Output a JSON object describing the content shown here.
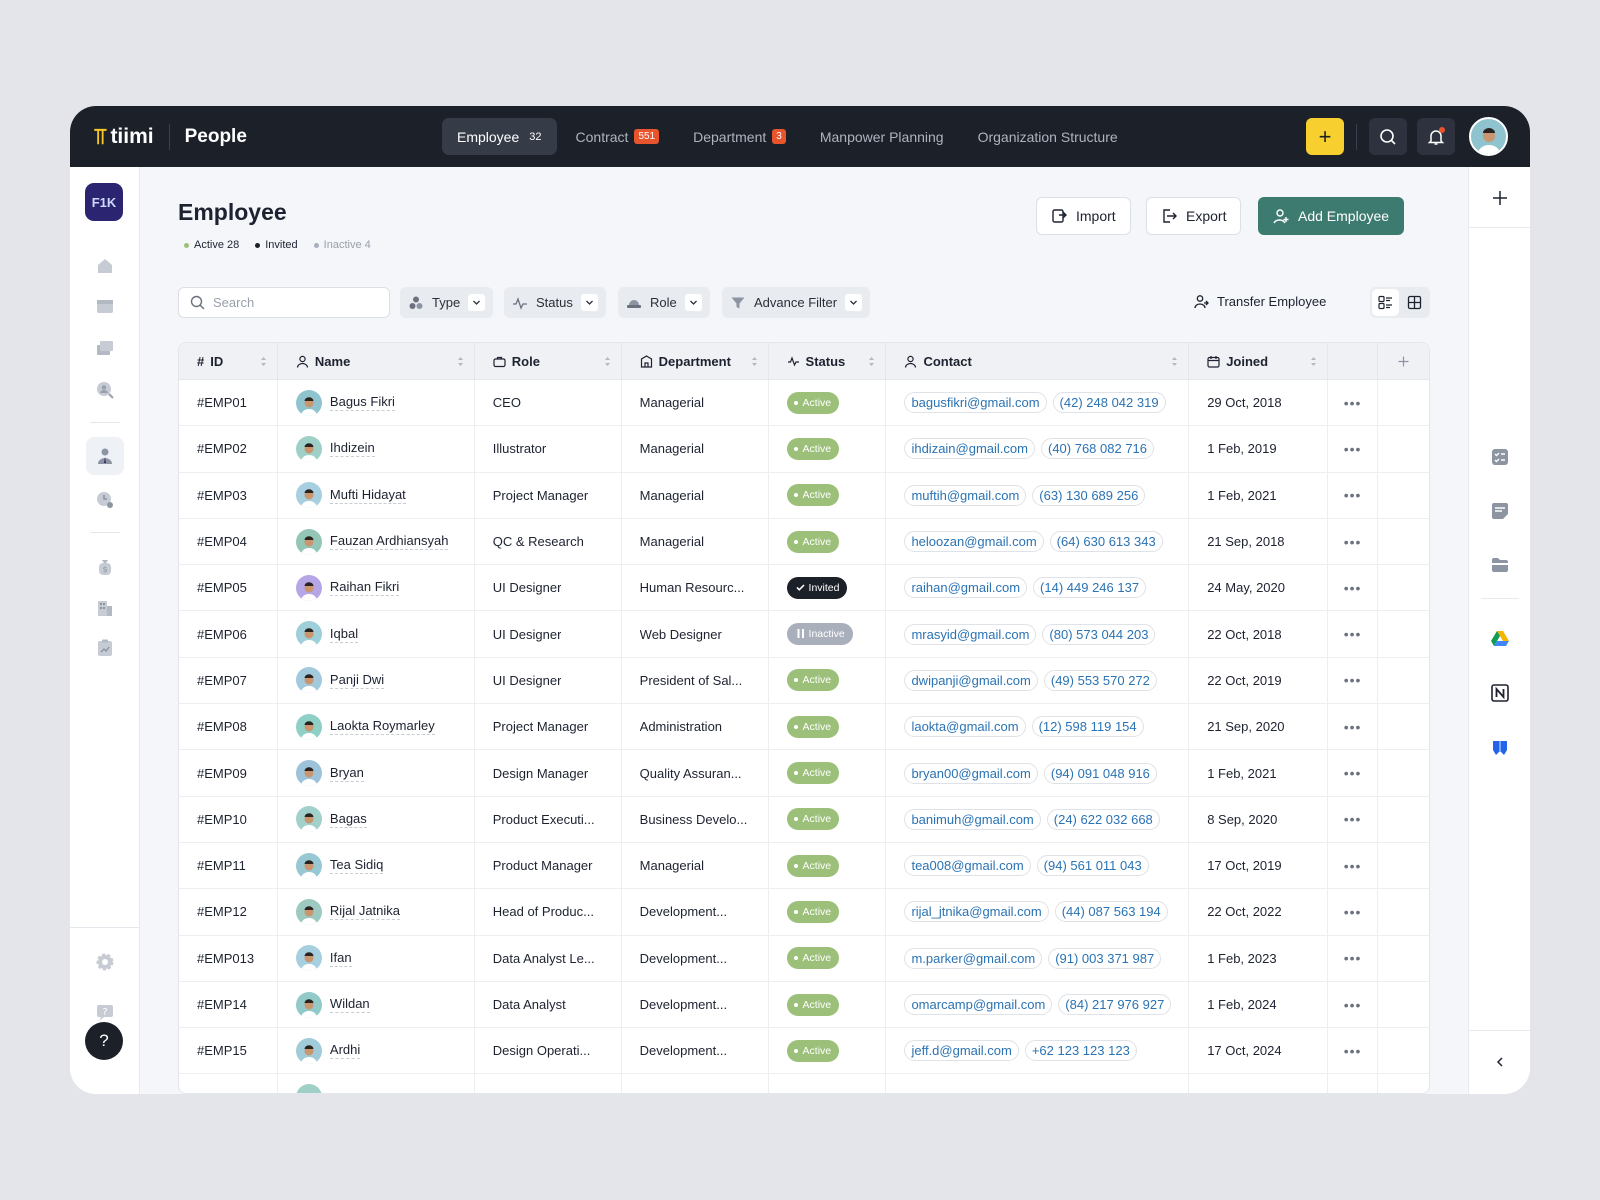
{
  "brand": {
    "logo": "tiimi",
    "app": "People"
  },
  "nav_tabs": [
    {
      "label": "Employee",
      "count": "32",
      "active": true
    },
    {
      "label": "Contract",
      "badge": "551"
    },
    {
      "label": "Department",
      "badge": "3"
    },
    {
      "label": "Manpower Planning"
    },
    {
      "label": "Organization Structure"
    }
  ],
  "org_badge": "F1K",
  "page": {
    "title": "Employee"
  },
  "stats": {
    "active": "Active 28",
    "invited": "Invited",
    "inactive": "Inactive 4"
  },
  "colors": {
    "active": "#9cc07a",
    "invited": "#1c2029",
    "inactive": "#a9b0bb",
    "accent": "#3d7b70",
    "brand": "#f7cf2e"
  },
  "header_buttons": {
    "import": "Import",
    "export": "Export",
    "add": "Add Employee"
  },
  "search": {
    "placeholder": "Search"
  },
  "filters": {
    "type": "Type",
    "status": "Status",
    "role": "Role",
    "advance": "Advance Filter"
  },
  "transfer": "Transfer Employee",
  "columns": {
    "id": "ID",
    "name": "Name",
    "role": "Role",
    "department": "Department",
    "status": "Status",
    "contact": "Contact",
    "joined": "Joined"
  },
  "rows": [
    {
      "id": "#EMP01",
      "name": "Bagus Fikri",
      "role": "CEO",
      "department": "Managerial",
      "status": "Active",
      "email": "bagusfikri@gmail.com",
      "phone": "(42) 248 042 319",
      "joined": "29 Oct, 2018"
    },
    {
      "id": "#EMP02",
      "name": "Ihdizein",
      "role": "Illustrator",
      "department": "Managerial",
      "status": "Active",
      "email": "ihdizain@gmail.com",
      "phone": "(40) 768 082 716",
      "joined": "1 Feb, 2019"
    },
    {
      "id": "#EMP03",
      "name": "Mufti Hidayat",
      "role": "Project Manager",
      "department": "Managerial",
      "status": "Active",
      "email": "muftih@gmail.com",
      "phone": "(63) 130 689 256",
      "joined": "1 Feb, 2021"
    },
    {
      "id": "#EMP04",
      "name": "Fauzan Ardhiansyah",
      "role": "QC & Research",
      "department": "Managerial",
      "status": "Active",
      "email": "heloozan@gmail.com",
      "phone": "(64) 630 613 343",
      "joined": "21 Sep, 2018"
    },
    {
      "id": "#EMP05",
      "name": "Raihan Fikri",
      "role": "UI Designer",
      "department": "Human Resourc...",
      "status": "Invited",
      "email": "raihan@gmail.com",
      "phone": "(14) 449 246 137",
      "joined": "24 May, 2020"
    },
    {
      "id": "#EMP06",
      "name": "Iqbal",
      "role": "UI Designer",
      "department": "Web Designer",
      "status": "Inactive",
      "email": "mrasyid@gmail.com",
      "phone": "(80) 573 044 203",
      "joined": "22 Oct, 2018"
    },
    {
      "id": "#EMP07",
      "name": "Panji Dwi",
      "role": "UI Designer",
      "department": "President of Sal...",
      "status": "Active",
      "email": "dwipanji@gmail.com",
      "phone": "(49) 553 570 272",
      "joined": "22 Oct, 2019"
    },
    {
      "id": "#EMP08",
      "name": "Laokta Roymarley",
      "role": "Project Manager",
      "department": "Administration",
      "status": "Active",
      "email": "laokta@gmail.com",
      "phone": "(12) 598 119 154",
      "joined": "21 Sep, 2020"
    },
    {
      "id": "#EMP09",
      "name": "Bryan",
      "role": "Design Manager",
      "department": "Quality Assuran...",
      "status": "Active",
      "email": "bryan00@gmail.com",
      "phone": "(94) 091 048 916",
      "joined": "1 Feb, 2021"
    },
    {
      "id": "#EMP10",
      "name": "Bagas",
      "role": "Product Executi...",
      "department": "Business Develo...",
      "status": "Active",
      "email": "banimuh@gmail.com",
      "phone": "(24) 622 032 668",
      "joined": "8 Sep, 2020"
    },
    {
      "id": "#EMP11",
      "name": "Tea Sidiq",
      "role": "Product Manager",
      "department": "Managerial",
      "status": "Active",
      "email": "tea008@gmail.com",
      "phone": "(94) 561 011 043",
      "joined": "17 Oct, 2019"
    },
    {
      "id": "#EMP12",
      "name": "Rijal Jatnika",
      "role": "Head of Produc...",
      "department": "Development...",
      "status": "Active",
      "email": "rijal_jtnika@gmail.com",
      "phone": "(44) 087 563 194",
      "joined": "22 Oct, 2022"
    },
    {
      "id": "#EMP013",
      "name": "Ifan",
      "role": "Data Analyst Le...",
      "department": "Development...",
      "status": "Active",
      "email": "m.parker@gmail.com",
      "phone": "(91) 003 371 987",
      "joined": "1 Feb, 2023"
    },
    {
      "id": "#EMP14",
      "name": "Wildan",
      "role": "Data Analyst",
      "department": "Development...",
      "status": "Active",
      "email": "omarcamp@gmail.com",
      "phone": "(84) 217 976 927",
      "joined": "1 Feb, 2024"
    },
    {
      "id": "#EMP15",
      "name": "Ardhi",
      "role": "Design Operati...",
      "department": "Development...",
      "status": "Active",
      "email": "jeff.d@gmail.com",
      "phone": "+62 123 123 123",
      "joined": "17 Oct, 2024"
    }
  ]
}
